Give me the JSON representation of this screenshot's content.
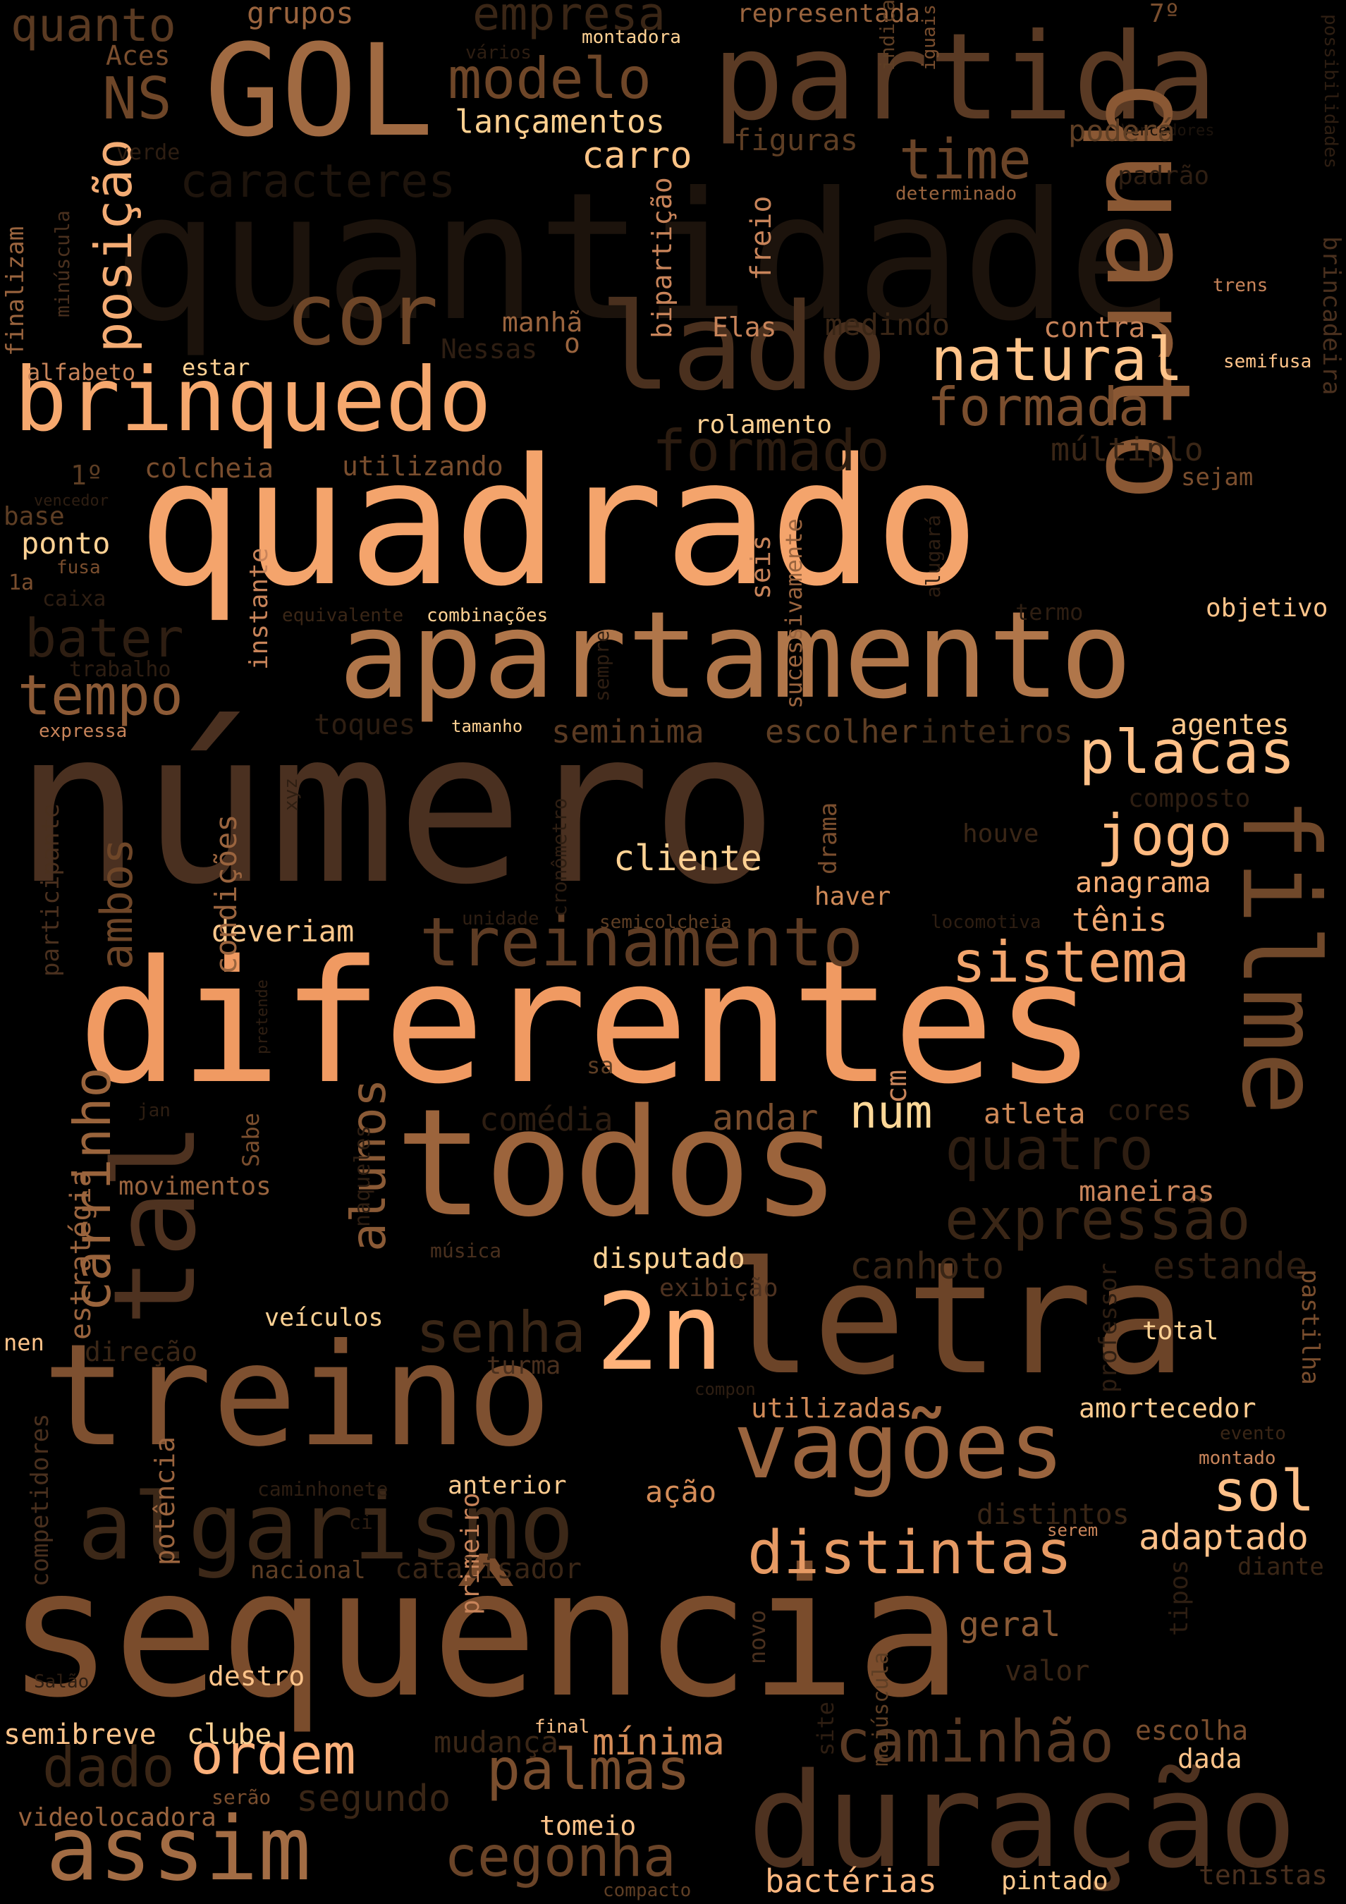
{
  "background": "#000000",
  "words": [
    {
      "text": "número",
      "color": "#4a3020"
    },
    {
      "text": "quantidade",
      "color": "#1c130c"
    },
    {
      "text": "quadrado",
      "color": "#f4a46c"
    },
    {
      "text": "sequência",
      "color": "#7a4c2c"
    },
    {
      "text": "diferentes",
      "color": "#f09a62"
    },
    {
      "text": "letra",
      "color": "#6c4428"
    },
    {
      "text": "todos",
      "color": "#9c643c"
    },
    {
      "text": "apartamento",
      "color": "#b0764a"
    },
    {
      "text": "treino",
      "color": "#7e5030"
    },
    {
      "text": "partida",
      "color": "#5a3a24"
    },
    {
      "text": "duração",
      "color": "#4e3220"
    },
    {
      "text": "GOL",
      "color": "#a06a42"
    },
    {
      "text": "lado",
      "color": "#4a301e"
    },
    {
      "text": "quarto",
      "color": "#8a5834"
    },
    {
      "text": "filme",
      "color": "#70482a"
    },
    {
      "text": "tal",
      "color": "#4e3220"
    },
    {
      "text": "brinquedo",
      "color": "#f6a86e"
    },
    {
      "text": "algarismo",
      "color": "#3c2818"
    },
    {
      "text": "vagões",
      "color": "#9a643e"
    },
    {
      "text": "assim",
      "color": "#a26c44"
    },
    {
      "text": "2n",
      "color": "#ffb27a"
    },
    {
      "text": "cor",
      "color": "#6e4628"
    },
    {
      "text": "treinamento",
      "color": "#5e3c24"
    },
    {
      "text": "natural",
      "color": "#ffc48a"
    },
    {
      "text": "placas",
      "color": "#ffc088"
    },
    {
      "text": "distintas",
      "color": "#e69a64"
    },
    {
      "text": "caminhão",
      "color": "#5a3a24"
    },
    {
      "text": "palmas",
      "color": "#7a4e2e"
    },
    {
      "text": "cegonha",
      "color": "#6a4428"
    },
    {
      "text": "expressão",
      "color": "#3a2616"
    },
    {
      "text": "formada",
      "color": "#7a4e2e"
    },
    {
      "text": "formado",
      "color": "#2c1c10"
    },
    {
      "text": "jogo",
      "color": "#ffba80"
    },
    {
      "text": "sistema",
      "color": "#f2a46c"
    },
    {
      "text": "ordem",
      "color": "#fcb07a"
    },
    {
      "text": "modelo",
      "color": "#6e4628"
    },
    {
      "text": "time",
      "color": "#6a4428"
    },
    {
      "text": "quatro",
      "color": "#2e1e12"
    },
    {
      "text": "tempo",
      "color": "#8c5a36"
    },
    {
      "text": "bater",
      "color": "#2e1e12"
    },
    {
      "text": "carrinho",
      "color": "#9a643c"
    },
    {
      "text": "posição",
      "color": "#f4ac74"
    },
    {
      "text": "sol",
      "color": "#ffc088"
    },
    {
      "text": "senha",
      "color": "#3a2616"
    },
    {
      "text": "alunos",
      "color": "#8a5a36"
    },
    {
      "text": "dado",
      "color": "#3a2616"
    },
    {
      "text": "NS",
      "color": "#6e4628"
    },
    {
      "text": "caracteres",
      "color": "#1e140c"
    },
    {
      "text": "num",
      "color": "#ffd898"
    },
    {
      "text": "empresa",
      "color": "#3a2616"
    },
    {
      "text": "quanto",
      "color": "#5a3a22"
    },
    {
      "text": "ambos",
      "color": "#6e4628"
    },
    {
      "text": "canhoto",
      "color": "#3a2616"
    },
    {
      "text": "estande",
      "color": "#2e1e12"
    },
    {
      "text": "adaptado",
      "color": "#ffc088"
    },
    {
      "text": "mínima",
      "color": "#d48c58"
    },
    {
      "text": "segundo",
      "color": "#3a2616"
    },
    {
      "text": "mudança",
      "color": "#3a2616"
    },
    {
      "text": "lançamentos",
      "color": "#ffd090"
    },
    {
      "text": "carro",
      "color": "#ffc486"
    },
    {
      "text": "seminima",
      "color": "#5a3a22"
    },
    {
      "text": "escolher",
      "color": "#5e3e24"
    },
    {
      "text": "inteiros",
      "color": "#3e2a18"
    },
    {
      "text": "cliente",
      "color": "#ffd294"
    },
    {
      "text": "andar",
      "color": "#7a4e2e"
    },
    {
      "text": "atleta",
      "color": "#d08a58"
    },
    {
      "text": "cores",
      "color": "#2e1e12"
    },
    {
      "text": "maneiras",
      "color": "#c8845a"
    },
    {
      "text": "anagrama",
      "color": "#f8ae76"
    },
    {
      "text": "tênis",
      "color": "#f2a870"
    },
    {
      "text": "deveriam",
      "color": "#ffc88c"
    },
    {
      "text": "estratégia",
      "color": "#9a643e"
    },
    {
      "text": "disputado",
      "color": "#ffd294"
    },
    {
      "text": "exibição",
      "color": "#4e3220"
    },
    {
      "text": "utilizadas",
      "color": "#d08a58"
    },
    {
      "text": "amortecedor",
      "color": "#ffcc90"
    },
    {
      "text": "ação",
      "color": "#d48c58"
    },
    {
      "text": "anterior",
      "color": "#ffcc90"
    },
    {
      "text": "veículos",
      "color": "#ffd294"
    },
    {
      "text": "direção",
      "color": "#3a2616"
    },
    {
      "text": "turma",
      "color": "#4a301e"
    },
    {
      "text": "distintos",
      "color": "#3a2616"
    },
    {
      "text": "geral",
      "color": "#8a5a36"
    },
    {
      "text": "valor",
      "color": "#3a2616"
    },
    {
      "text": "escolha",
      "color": "#7a4e2e"
    },
    {
      "text": "dada",
      "color": "#ffc48a"
    },
    {
      "text": "tenistas",
      "color": "#4a301e"
    },
    {
      "text": "bactérias",
      "color": "#ffb880"
    },
    {
      "text": "pintado",
      "color": "#ffc88c"
    },
    {
      "text": "compacto",
      "color": "#5e3e24"
    },
    {
      "text": "tomeio",
      "color": "#ffc48a"
    },
    {
      "text": "videolocadora",
      "color": "#9a643e"
    },
    {
      "text": "serão",
      "color": "#7a4e2e"
    },
    {
      "text": "semibreve",
      "color": "#ffc48a"
    },
    {
      "text": "clube",
      "color": "#ffd294"
    },
    {
      "text": "destro",
      "color": "#ffc48a"
    },
    {
      "text": "potência",
      "color": "#9a643e"
    },
    {
      "text": "primeiro",
      "color": "#c8845a"
    },
    {
      "text": "Salão",
      "color": "#2e1e12"
    },
    {
      "text": "nacional",
      "color": "#5e3e24"
    },
    {
      "text": "catalisador",
      "color": "#3a2616"
    },
    {
      "text": "competidores",
      "color": "#4a301e"
    },
    {
      "text": "caminhonete",
      "color": "#2e1e12"
    },
    {
      "text": "ci",
      "color": "#2e1e12"
    },
    {
      "text": "nen",
      "color": "#ffc48a"
    },
    {
      "text": "movimentos",
      "color": "#9a643e"
    },
    {
      "text": "jan",
      "color": "#2e1e12"
    },
    {
      "text": "Sabe",
      "color": "#7a4e2e"
    },
    {
      "text": "naqueles",
      "color": "#2e1e12"
    },
    {
      "text": "música",
      "color": "#4a301e"
    },
    {
      "text": "comédia",
      "color": "#2e1e12"
    },
    {
      "text": "sa",
      "color": "#5e3e24"
    },
    {
      "text": "cm",
      "color": "#c8845a"
    },
    {
      "text": "drama",
      "color": "#7a4e2e"
    },
    {
      "text": "houve",
      "color": "#3a2616"
    },
    {
      "text": "haver",
      "color": "#d08a58"
    },
    {
      "text": "locomotiva",
      "color": "#2e1e12"
    },
    {
      "text": "unidade",
      "color": "#2e1e12"
    },
    {
      "text": "semicolcheia",
      "color": "#5e3e24"
    },
    {
      "text": "cronômetro",
      "color": "#2e1e12"
    },
    {
      "text": "condições",
      "color": "#9a643e"
    },
    {
      "text": "pretende",
      "color": "#2e1e12"
    },
    {
      "text": "participante",
      "color": "#4a301e"
    },
    {
      "text": "xyz",
      "color": "#2e1e12"
    },
    {
      "text": "expressa",
      "color": "#c8845a"
    },
    {
      "text": "toques",
      "color": "#2e1e12"
    },
    {
      "text": "tamanho",
      "color": "#ffd294"
    },
    {
      "text": "trabalho",
      "color": "#2e1e12"
    },
    {
      "text": "sempre",
      "color": "#2e1e12"
    },
    {
      "text": "sucessivamente",
      "color": "#9a643e"
    },
    {
      "text": "seis",
      "color": "#c8845a"
    },
    {
      "text": "alugará",
      "color": "#2e1e12"
    },
    {
      "text": "termo",
      "color": "#2e1e12"
    },
    {
      "text": "objetivo",
      "color": "#ffc48a"
    },
    {
      "text": "agentes",
      "color": "#ffc88c"
    },
    {
      "text": "composto",
      "color": "#2e1e12"
    },
    {
      "text": "equivalente",
      "color": "#3a2616"
    },
    {
      "text": "combinações",
      "color": "#ffd294"
    },
    {
      "text": "instante",
      "color": "#c8845a"
    },
    {
      "text": "caixa",
      "color": "#2e1e12"
    },
    {
      "text": "1a",
      "color": "#7a4e2e"
    },
    {
      "text": "fusa",
      "color": "#7a4e2e"
    },
    {
      "text": "ponto",
      "color": "#ffd294"
    },
    {
      "text": "base",
      "color": "#5e3e24"
    },
    {
      "text": "vencedor",
      "color": "#2e1e12"
    },
    {
      "text": "1º",
      "color": "#5e3e24"
    },
    {
      "text": "colcheia",
      "color": "#7a4e2e"
    },
    {
      "text": "utilizando",
      "color": "#7a4e2e"
    },
    {
      "text": "rolamento",
      "color": "#ffd294"
    },
    {
      "text": "múltiplo",
      "color": "#3a2616"
    },
    {
      "text": "sejam",
      "color": "#7a4e2e"
    },
    {
      "text": "semifusa",
      "color": "#ffc48a"
    },
    {
      "text": "contra",
      "color": "#c8845a"
    },
    {
      "text": "medindo",
      "color": "#3a2616"
    },
    {
      "text": "Elas",
      "color": "#c8845a"
    },
    {
      "text": "manhã",
      "color": "#9a643e"
    },
    {
      "text": "o",
      "color": "#9a643e"
    },
    {
      "text": "Nessas",
      "color": "#2e1e12"
    },
    {
      "text": "bipartição",
      "color": "#c8845a"
    },
    {
      "text": "freio",
      "color": "#c8845a"
    },
    {
      "text": "estar",
      "color": "#ffd294"
    },
    {
      "text": "alfabeto",
      "color": "#c8845a"
    },
    {
      "text": "finalizam",
      "color": "#9a643e"
    },
    {
      "text": "minúscula",
      "color": "#4a301e"
    },
    {
      "text": "verde",
      "color": "#2e1e12"
    },
    {
      "text": "Aces",
      "color": "#7a4e2e"
    },
    {
      "text": "grupos",
      "color": "#9a643e"
    },
    {
      "text": "vários",
      "color": "#2e1e12"
    },
    {
      "text": "montadora",
      "color": "#ffd294"
    },
    {
      "text": "representada",
      "color": "#9a643e"
    },
    {
      "text": "7º",
      "color": "#7a4e2e"
    },
    {
      "text": "Vencedores",
      "color": "#1c130c"
    },
    {
      "text": "possibilidades",
      "color": "#2e1e12"
    },
    {
      "text": "figuras",
      "color": "#5e3e24"
    },
    {
      "text": "indica",
      "color": "#5e3e24"
    },
    {
      "text": "iguais",
      "color": "#7a4e2e"
    },
    {
      "text": "poderá",
      "color": "#5e3e24"
    },
    {
      "text": "padrão",
      "color": "#2e1e12"
    },
    {
      "text": "determinado",
      "color": "#9a643e"
    },
    {
      "text": "trens",
      "color": "#c8845a"
    },
    {
      "text": "brincadeira",
      "color": "#4a301e"
    },
    {
      "text": "professor",
      "color": "#2e1e12"
    },
    {
      "text": "pastilha",
      "color": "#7a4e2e"
    },
    {
      "text": "total",
      "color": "#ffd294"
    },
    {
      "text": "evento",
      "color": "#3a2616"
    },
    {
      "text": "montado",
      "color": "#c8845a"
    },
    {
      "text": "serem",
      "color": "#c8845a"
    },
    {
      "text": "diante",
      "color": "#3a2616"
    },
    {
      "text": "tipos",
      "color": "#2e1e12"
    },
    {
      "text": "novo",
      "color": "#4a301e"
    },
    {
      "text": "maiúscula",
      "color": "#5e3e24"
    },
    {
      "text": "site",
      "color": "#2e1e12"
    },
    {
      "text": "final",
      "color": "#ffc48a"
    },
    {
      "text": "compon",
      "color": "#2e1e12"
    }
  ]
}
